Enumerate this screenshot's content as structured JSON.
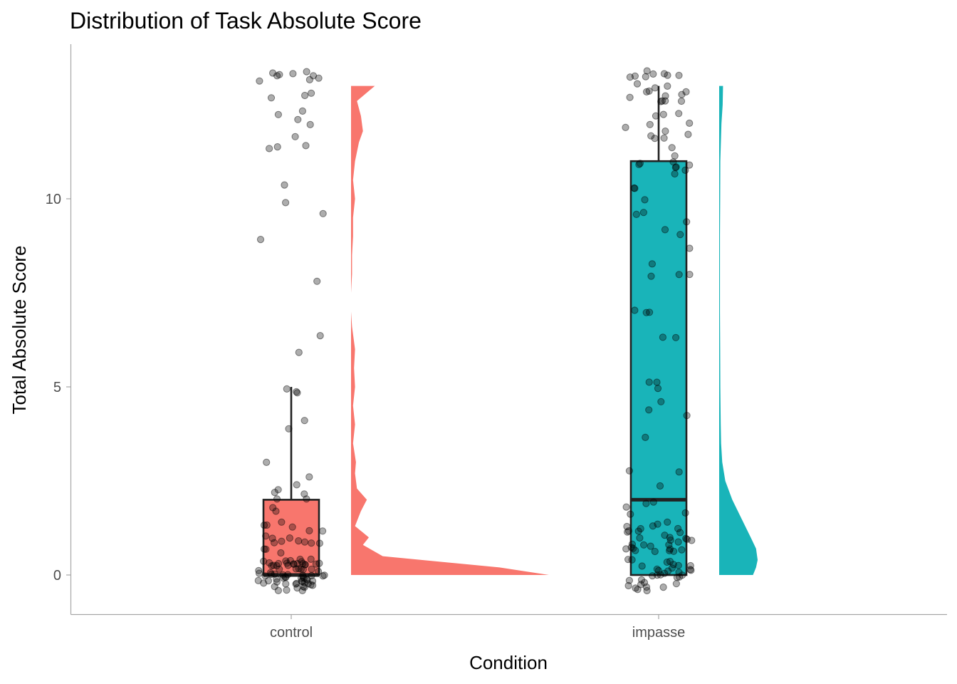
{
  "chart_data": {
    "type": "raincloud",
    "title": "Distribution of Task Absolute Score",
    "xlabel": "Condition",
    "ylabel": "Total Absolute Score",
    "ylim": [
      -1.05,
      14.1
    ],
    "y_ticks": [
      0,
      5,
      10
    ],
    "categories": [
      "control",
      "impasse"
    ],
    "grid": false,
    "legend": "none",
    "series": [
      {
        "name": "control",
        "color": "#F8766D",
        "box": {
          "q1": 0,
          "median": 0,
          "q3": 2,
          "whisker_low": 0,
          "whisker_high": 5
        },
        "density": {
          "y": [
            0,
            0.2,
            0.5,
            0.8,
            1.0,
            1.3,
            1.7,
            2.0,
            2.3,
            2.7,
            3.0,
            3.5,
            4.0,
            4.5,
            5.0,
            5.5,
            6.0,
            6.6,
            7.0,
            7.5,
            8.0,
            8.5,
            9.0,
            9.5,
            10.0,
            10.5,
            11.0,
            11.5,
            11.8,
            12.2,
            12.6,
            13.0
          ],
          "d": [
            1.0,
            0.75,
            0.16,
            0.06,
            0.09,
            0.02,
            0.05,
            0.08,
            0.03,
            0.02,
            0.025,
            0.01,
            0.02,
            0.01,
            0.02,
            0.015,
            0.02,
            0.005,
            0.0,
            0.0,
            0.005,
            0.005,
            0.01,
            0.01,
            0.02,
            0.01,
            0.02,
            0.04,
            0.06,
            0.05,
            0.03,
            0.12
          ]
        },
        "points": [
          0,
          0,
          0,
          0,
          0,
          0,
          0,
          0,
          0,
          0,
          0,
          0,
          0,
          0,
          0,
          0,
          0,
          0,
          0,
          0,
          0,
          0,
          0,
          0,
          0,
          0,
          0,
          0,
          0,
          0,
          0,
          0,
          0,
          0,
          0,
          0,
          0,
          0,
          0,
          0,
          0,
          0,
          0,
          0,
          0,
          0,
          0,
          0,
          0,
          0,
          0,
          0,
          0,
          0,
          0,
          0,
          0,
          0,
          0,
          0,
          0,
          0,
          0,
          0,
          0,
          0,
          0,
          0,
          0,
          0,
          1,
          1,
          1,
          1,
          1,
          1,
          1,
          1,
          1,
          1,
          1,
          1,
          1,
          1,
          1,
          1,
          1,
          1,
          2,
          2,
          2,
          2,
          2,
          2,
          2,
          2,
          3,
          3,
          4,
          4,
          5,
          5,
          5,
          6,
          6,
          8,
          9,
          10,
          10,
          10,
          11,
          11,
          11,
          12,
          12,
          12,
          12,
          12,
          13,
          13,
          13,
          13,
          13,
          13,
          13,
          13,
          13,
          13,
          13,
          13
        ]
      },
      {
        "name": "impasse",
        "color": "#19B4B9",
        "box": {
          "q1": 0,
          "median": 2,
          "q3": 11,
          "whisker_low": 0,
          "whisker_high": 13
        },
        "density": {
          "y": [
            0,
            0.2,
            0.4,
            0.7,
            1.0,
            1.5,
            2.0,
            2.5,
            3.0,
            3.5,
            4.0,
            5.0,
            6.0,
            7.0,
            8.0,
            9.0,
            10.0,
            11.0,
            12.0,
            12.5,
            13.0
          ],
          "d": [
            0.88,
            0.96,
            1.0,
            0.96,
            0.82,
            0.58,
            0.34,
            0.16,
            0.08,
            0.05,
            0.04,
            0.03,
            0.025,
            0.02,
            0.02,
            0.02,
            0.025,
            0.03,
            0.06,
            0.09,
            0.1
          ]
        },
        "points": [
          0,
          0,
          0,
          0,
          0,
          0,
          0,
          0,
          0,
          0,
          0,
          0,
          0,
          0,
          0,
          0,
          0,
          0,
          0,
          0,
          0,
          0,
          0,
          0,
          0,
          0,
          0,
          0,
          0,
          0,
          0,
          0,
          0,
          1,
          1,
          1,
          1,
          1,
          1,
          1,
          1,
          1,
          1,
          1,
          1,
          1,
          1,
          1,
          1,
          1,
          1,
          1,
          1,
          1,
          1,
          1,
          1,
          1,
          1,
          1,
          1,
          1,
          1,
          1,
          2,
          2,
          2,
          2,
          2,
          2,
          3,
          3,
          4,
          4,
          4,
          5,
          5,
          5,
          5,
          6,
          6,
          7,
          7,
          7,
          8,
          8,
          8,
          8,
          9,
          9,
          9,
          9,
          10,
          10,
          10,
          10,
          10,
          11,
          11,
          11,
          11,
          11,
          11,
          11,
          11,
          11,
          11,
          12,
          12,
          12,
          12,
          12,
          12,
          12,
          12,
          12,
          12,
          12,
          13,
          13,
          13,
          13,
          13,
          13,
          13,
          13,
          13,
          13,
          13,
          13,
          13,
          13,
          13,
          13,
          13,
          13,
          13,
          13,
          13
        ]
      }
    ]
  }
}
